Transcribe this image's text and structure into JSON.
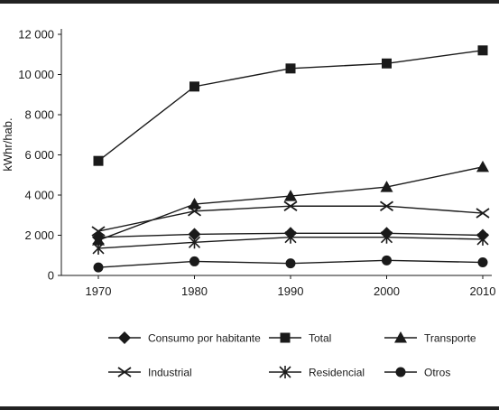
{
  "chart_data": {
    "type": "line",
    "title": "",
    "xlabel": "",
    "ylabel": "kWhr/hab.",
    "x": [
      1970,
      1980,
      1990,
      2000,
      2010
    ],
    "x_tick_labels": [
      "1970",
      "1980",
      "1990",
      "2000",
      "2010"
    ],
    "ylim": [
      0,
      12000
    ],
    "y_ticks": [
      0,
      2000,
      4000,
      6000,
      8000,
      10000,
      12000
    ],
    "y_tick_labels": [
      "0",
      "2 000",
      "4 000",
      "6 000",
      "8 000",
      "10 000",
      "12 000"
    ],
    "grid": false,
    "legend_position": "bottom",
    "series": [
      {
        "name": "Consumo por habitante",
        "marker": "diamond",
        "values": [
          1900,
          2050,
          2100,
          2100,
          2000
        ]
      },
      {
        "name": "Total",
        "marker": "square",
        "values": [
          5700,
          9400,
          10300,
          10550,
          11200
        ]
      },
      {
        "name": "Transporte",
        "marker": "triangle",
        "values": [
          1750,
          3550,
          3950,
          4400,
          5400
        ]
      },
      {
        "name": "Industrial",
        "marker": "x",
        "values": [
          2200,
          3200,
          3450,
          3450,
          3100
        ]
      },
      {
        "name": "Residencial",
        "marker": "asterisk",
        "values": [
          1350,
          1650,
          1900,
          1900,
          1800
        ]
      },
      {
        "name": "Otros",
        "marker": "circle",
        "values": [
          400,
          700,
          600,
          750,
          650
        ]
      }
    ]
  },
  "colors": {
    "ink": "#1a1a1a",
    "rule": "#222222"
  }
}
